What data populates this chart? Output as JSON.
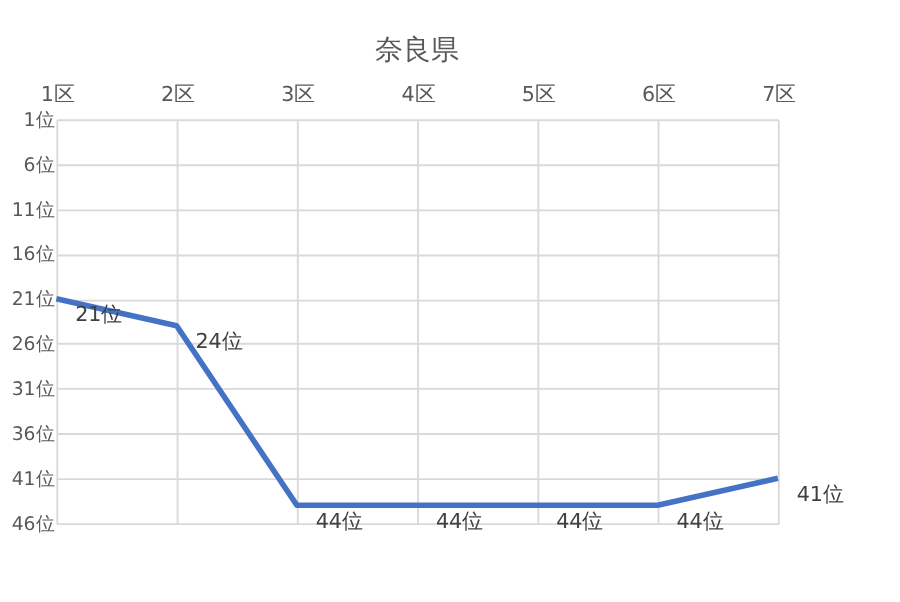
{
  "chart_data": {
    "type": "line",
    "title": "奈良県",
    "categories": [
      "1区",
      "2区",
      "3区",
      "4区",
      "5区",
      "6区",
      "7区"
    ],
    "series": [
      {
        "color": "#4472c4",
        "values": [
          21,
          24,
          44,
          44,
          44,
          44,
          41
        ],
        "value_labels": [
          "21位",
          "24位",
          "44位",
          "44位",
          "44位",
          "44位",
          "41位"
        ]
      }
    ],
    "ylim": [
      46,
      1
    ],
    "yticks": [
      {
        "value": 1,
        "label": "1位"
      },
      {
        "value": 6,
        "label": "6位"
      },
      {
        "value": 11,
        "label": "11位"
      },
      {
        "value": 16,
        "label": "16位"
      },
      {
        "value": 21,
        "label": "21位"
      },
      {
        "value": 26,
        "label": "26位"
      },
      {
        "value": 31,
        "label": "31位"
      },
      {
        "value": 36,
        "label": "36位"
      },
      {
        "value": 41,
        "label": "41位"
      },
      {
        "value": 46,
        "label": "46位"
      }
    ],
    "grid": true,
    "marker": "none",
    "line_style": "solid"
  }
}
